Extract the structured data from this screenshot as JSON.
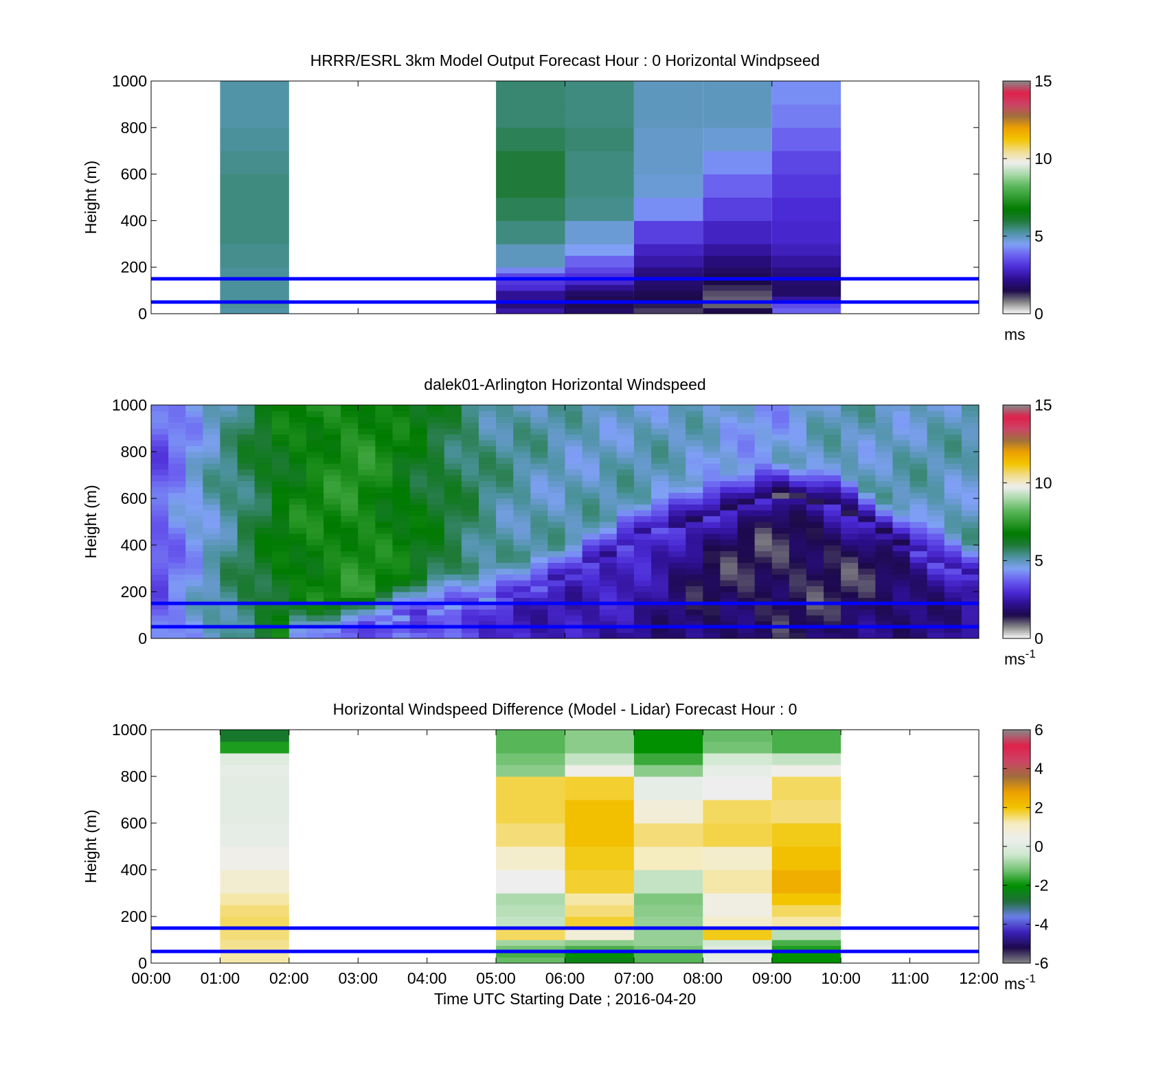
{
  "colors": {
    "hline": "#0000ff",
    "frame": "#000000",
    "background": "#ffffff",
    "speed_scale": [
      "#ffffff",
      "#888888",
      "#1c0a4a",
      "#2d0f90",
      "#4b2bd6",
      "#6a5ef0",
      "#7fa0f5",
      "#4e93a2",
      "#207a3a",
      "#007a00",
      "#2e9a2e",
      "#5cb85c",
      "#a8d8a8",
      "#eeeeee",
      "#f0dc8c",
      "#f2c500",
      "#eea000",
      "#a0703c",
      "#cc4466",
      "#e0204a",
      "#888888"
    ],
    "diff_scale": [
      "#888888",
      "#1c0a4a",
      "#3b1fb8",
      "#6a7ee8",
      "#1f6f3a",
      "#009000",
      "#74c274",
      "#cfe8cf",
      "#eeeeee",
      "#f5ecc0",
      "#f2c500",
      "#eea000",
      "#a06e3a",
      "#cc4466",
      "#e0204a",
      "#888888"
    ]
  },
  "chart_data": [
    {
      "type": "heatmap",
      "title": "HRRR/ESRL 3km Model Output   Forecast Hour : 0 Horizontal Windpseed",
      "ylabel": "Height (m)",
      "ylim": [
        0,
        1000
      ],
      "yticks": [
        "0",
        "200",
        "400",
        "600",
        "800",
        "1000"
      ],
      "xlim_hours": [
        0,
        12
      ],
      "hlines_m": [
        50,
        150
      ],
      "colorbar": {
        "min": 0,
        "max": 15,
        "ticks": [
          "0",
          "5",
          "10",
          "15"
        ],
        "unit": "ms",
        "unit_sup": ""
      },
      "levels_m": [
        25,
        50,
        75,
        100,
        125,
        150,
        175,
        200,
        250,
        300,
        400,
        500,
        600,
        700,
        800,
        900,
        1000
      ],
      "columns": [
        {
          "start": 1,
          "end": 2,
          "values": [
            5.2,
            5.3,
            5.3,
            5.3,
            5.3,
            5.3,
            5.3,
            5.3,
            5.4,
            5.4,
            5.5,
            5.5,
            5.5,
            5.4,
            5.3,
            5.2,
            5.2
          ]
        },
        {
          "start": 5,
          "end": 6,
          "values": [
            2.5,
            2.0,
            2.3,
            2.3,
            3.0,
            3.2,
            3.4,
            4.2,
            5.0,
            5.0,
            5.5,
            5.8,
            6.0,
            6.0,
            5.8,
            5.6,
            5.6
          ]
        },
        {
          "start": 6,
          "end": 7,
          "values": [
            1.8,
            1.6,
            1.6,
            1.8,
            2.3,
            2.9,
            3.1,
            3.4,
            3.8,
            4.5,
            4.8,
            5.4,
            5.5,
            5.5,
            5.6,
            5.5,
            5.5
          ]
        },
        {
          "start": 7,
          "end": 8,
          "values": [
            1.2,
            1.4,
            1.5,
            1.6,
            1.8,
            1.9,
            2.0,
            2.1,
            2.5,
            2.8,
            3.3,
            4.3,
            4.8,
            4.9,
            4.9,
            5.0,
            5.0
          ]
        },
        {
          "start": 8,
          "end": 9,
          "values": [
            1.5,
            1.0,
            1.0,
            1.1,
            1.3,
            1.5,
            1.6,
            1.8,
            2.0,
            2.4,
            2.8,
            3.3,
            3.8,
            4.3,
            4.8,
            5.0,
            5.0
          ]
        },
        {
          "start": 9,
          "end": 10,
          "values": [
            3.8,
            3.5,
            2.4,
            1.8,
            1.8,
            1.9,
            2.0,
            2.1,
            2.4,
            2.7,
            2.9,
            3.0,
            3.2,
            3.4,
            3.8,
            4.1,
            4.3
          ]
        }
      ]
    },
    {
      "type": "heatmap",
      "title": "dalek01-Arlington  Horizontal Windspeed",
      "ylabel": "Height (m)",
      "ylim": [
        0,
        1000
      ],
      "yticks": [
        "0",
        "200",
        "400",
        "600",
        "800",
        "1000"
      ],
      "xlim_hours": [
        0,
        12
      ],
      "hlines_m": [
        50,
        150
      ],
      "colorbar": {
        "min": 0,
        "max": 15,
        "ticks": [
          "0",
          "5",
          "10",
          "15"
        ],
        "unit": "ms",
        "unit_sup": "-1"
      },
      "time_resolution_hours": 0.25,
      "time_range_hours": [
        0,
        11.85
      ],
      "surface_speed_profile_hours": [
        0,
        1,
        2,
        3,
        4,
        5,
        6,
        7,
        8,
        9,
        10,
        11,
        12
      ],
      "surface_speed_profile": [
        3.5,
        5.0,
        5.5,
        5.0,
        4.5,
        3.5,
        2.5,
        2.2,
        2.0,
        2.0,
        2.3,
        2.5,
        3.0
      ],
      "aloft_speed_profile": [
        3.5,
        5.2,
        6.8,
        7.3,
        6.3,
        5.3,
        5.0,
        5.0,
        4.8,
        4.5,
        5.0,
        5.0,
        5.0
      ],
      "stable_layer_top_m": [
        0,
        0,
        0,
        40,
        120,
        170,
        250,
        430,
        520,
        620,
        560,
        380,
        250
      ],
      "stable_layer_core_speed": [
        4.0,
        4.0,
        4.0,
        3.5,
        3.2,
        2.9,
        2.5,
        2.6,
        1.6,
        1.2,
        1.3,
        1.6,
        2.5
      ]
    },
    {
      "type": "heatmap",
      "title": "Horizontal Windspeed Difference (Model - Lidar) Forecast Hour : 0",
      "xlabel": "Time UTC  Starting Date ; 2016-04-20",
      "ylabel": "Height (m)",
      "ylim": [
        0,
        1000
      ],
      "yticks": [
        "0",
        "200",
        "400",
        "600",
        "800",
        "1000"
      ],
      "xlim_hours": [
        0,
        12
      ],
      "xticks": [
        "00:00",
        "01:00",
        "02:00",
        "03:00",
        "04:00",
        "05:00",
        "06:00",
        "07:00",
        "08:00",
        "09:00",
        "10:00",
        "11:00",
        "12:00"
      ],
      "hlines_m": [
        50,
        150
      ],
      "colorbar": {
        "min": -6,
        "max": 6,
        "ticks": [
          "-6",
          "-4",
          "-2",
          "0",
          "2",
          "4",
          "6"
        ],
        "unit": "ms",
        "unit_sup": "-1"
      },
      "levels_m": [
        25,
        50,
        75,
        100,
        150,
        200,
        250,
        300,
        400,
        500,
        600,
        700,
        800,
        850,
        900,
        950,
        1000
      ],
      "columns": [
        {
          "start": 1,
          "end": 2,
          "values": [
            1.3,
            1.3,
            1.4,
            1.4,
            1.5,
            1.6,
            1.5,
            1.3,
            0.9,
            0.5,
            0.2,
            0.1,
            0.1,
            0.2,
            0.0,
            -1.8,
            -2.6
          ]
        },
        {
          "start": 5,
          "end": 6,
          "values": [
            -1.3,
            -1.5,
            -1.2,
            -0.8,
            1.6,
            -0.5,
            -0.6,
            -0.7,
            0.4,
            1.0,
            1.5,
            1.7,
            1.7,
            -1.0,
            -1.2,
            -1.4,
            -1.4
          ]
        },
        {
          "start": 6,
          "end": 7,
          "values": [
            -2.3,
            -2.0,
            -1.5,
            -1.0,
            0.8,
            1.8,
            1.5,
            1.3,
            1.8,
            1.9,
            2.1,
            2.1,
            1.8,
            0.5,
            -0.5,
            -1.0,
            -1.0
          ]
        },
        {
          "start": 7,
          "end": 8,
          "values": [
            -1.4,
            -1.4,
            -1.2,
            -0.9,
            -0.9,
            -0.9,
            -1.0,
            -1.1,
            -0.5,
            1.2,
            1.5,
            0.8,
            0.2,
            -1.0,
            -1.6,
            -2.0,
            -2.0
          ]
        },
        {
          "start": 8,
          "end": 9,
          "values": [
            0.2,
            0.1,
            0.0,
            -0.3,
            1.9,
            1.0,
            0.6,
            0.6,
            1.3,
            1.0,
            1.7,
            1.6,
            0.4,
            0.2,
            -0.3,
            -1.2,
            -1.3
          ]
        },
        {
          "start": 9,
          "end": 10,
          "values": [
            -2.0,
            -2.0,
            -1.8,
            -1.5,
            -0.6,
            1.3,
            1.6,
            2.0,
            2.5,
            2.1,
            1.9,
            1.5,
            1.6,
            0.5,
            -0.5,
            -1.5,
            -1.5
          ]
        }
      ]
    }
  ]
}
